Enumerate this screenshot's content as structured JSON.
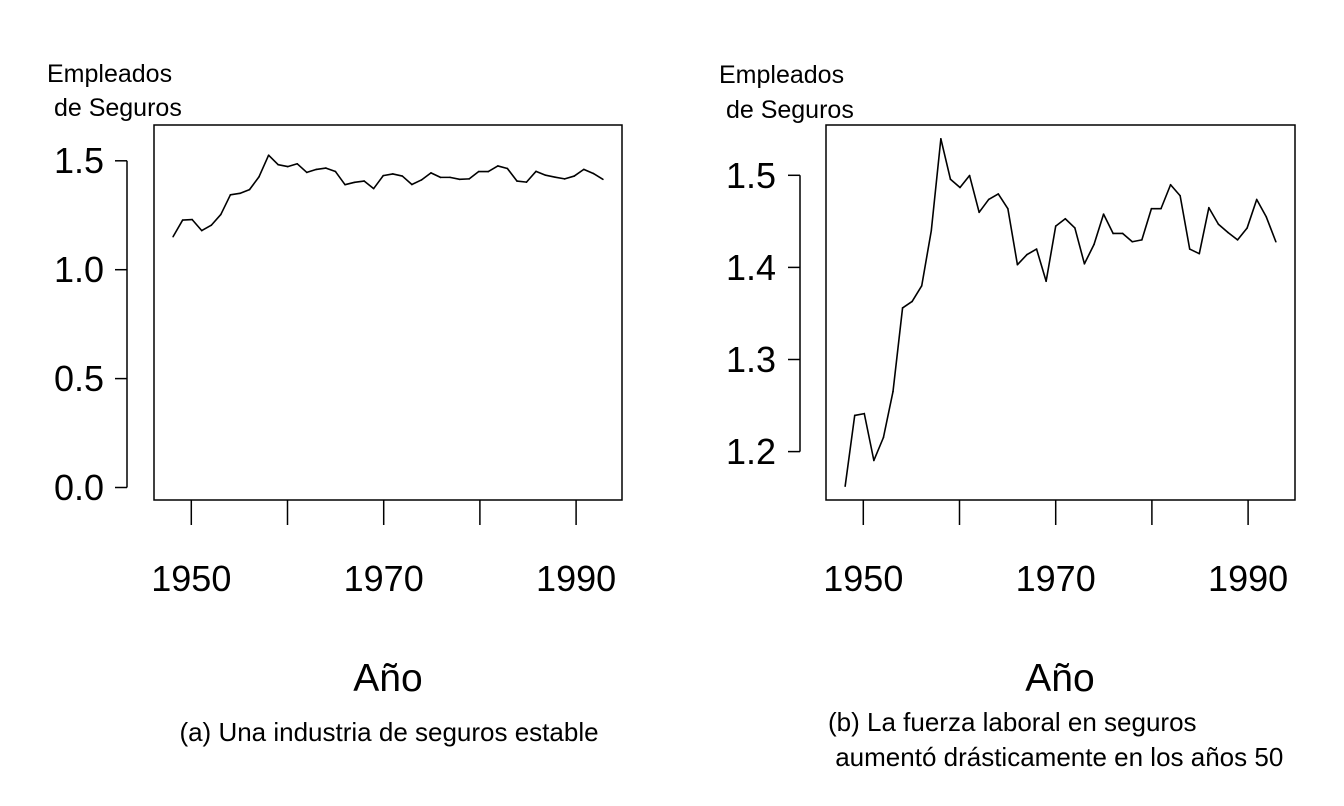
{
  "chart_data": [
    {
      "id": "a",
      "type": "line",
      "caption": [
        "(a) Una industria de seguros estable"
      ],
      "ylabel": [
        "Empleados",
        " de Seguros"
      ],
      "xlabel": "Año",
      "xlim": [
        1946,
        1995
      ],
      "ylim": [
        -0.06,
        1.68
      ],
      "yticks": [
        "0.0",
        "0.5",
        "1.0",
        "1.5"
      ],
      "xticks": [
        "1950",
        "1970",
        "1990"
      ],
      "series": [
        {
          "x": [
            1948,
            1949,
            1950,
            1951,
            1952,
            1953,
            1954,
            1955,
            1956,
            1957,
            1958,
            1959,
            1960,
            1961,
            1962,
            1963,
            1964,
            1965,
            1966,
            1967,
            1968,
            1969,
            1970,
            1971,
            1972,
            1973,
            1974,
            1975,
            1976,
            1977,
            1978,
            1979,
            1980,
            1981,
            1982,
            1983,
            1984,
            1985,
            1986,
            1987,
            1988,
            1989,
            1990,
            1991,
            1992,
            1993
          ],
          "y": [
            1.162,
            1.239,
            1.241,
            1.19,
            1.215,
            1.265,
            1.356,
            1.363,
            1.38,
            1.44,
            1.54,
            1.496,
            1.487,
            1.5,
            1.46,
            1.474,
            1.48,
            1.464,
            1.403,
            1.414,
            1.42,
            1.385,
            1.445,
            1.453,
            1.443,
            1.404,
            1.425,
            1.458,
            1.437,
            1.437,
            1.428,
            1.43,
            1.464,
            1.464,
            1.49,
            1.478,
            1.42,
            1.415,
            1.465,
            1.447,
            1.438,
            1.43,
            1.443,
            1.474,
            1.455,
            1.428
          ]
        }
      ]
    },
    {
      "id": "b",
      "type": "line",
      "caption": [
        "(b) La fuerza laboral en seguros",
        " aumentó drásticamente en los años 50"
      ],
      "ylabel": [
        "Empleados",
        " de Seguros"
      ],
      "xlabel": "Año",
      "xlim": [
        1946,
        1995
      ],
      "ylim": [
        1.147,
        1.555
      ],
      "yticks": [
        "1.2",
        "1.3",
        "1.4",
        "1.5"
      ],
      "xticks": [
        "1950",
        "1970",
        "1990"
      ],
      "series": [
        {
          "x": [
            1948,
            1949,
            1950,
            1951,
            1952,
            1953,
            1954,
            1955,
            1956,
            1957,
            1958,
            1959,
            1960,
            1961,
            1962,
            1963,
            1964,
            1965,
            1966,
            1967,
            1968,
            1969,
            1970,
            1971,
            1972,
            1973,
            1974,
            1975,
            1976,
            1977,
            1978,
            1979,
            1980,
            1981,
            1982,
            1983,
            1984,
            1985,
            1986,
            1987,
            1988,
            1989,
            1990,
            1991,
            1992,
            1993
          ],
          "y": [
            1.162,
            1.239,
            1.241,
            1.19,
            1.215,
            1.265,
            1.356,
            1.363,
            1.38,
            1.44,
            1.54,
            1.496,
            1.487,
            1.5,
            1.46,
            1.474,
            1.48,
            1.464,
            1.403,
            1.414,
            1.42,
            1.385,
            1.445,
            1.453,
            1.443,
            1.404,
            1.425,
            1.458,
            1.437,
            1.437,
            1.428,
            1.43,
            1.464,
            1.464,
            1.49,
            1.478,
            1.42,
            1.415,
            1.465,
            1.447,
            1.438,
            1.43,
            1.443,
            1.474,
            1.455,
            1.428
          ]
        }
      ]
    }
  ]
}
